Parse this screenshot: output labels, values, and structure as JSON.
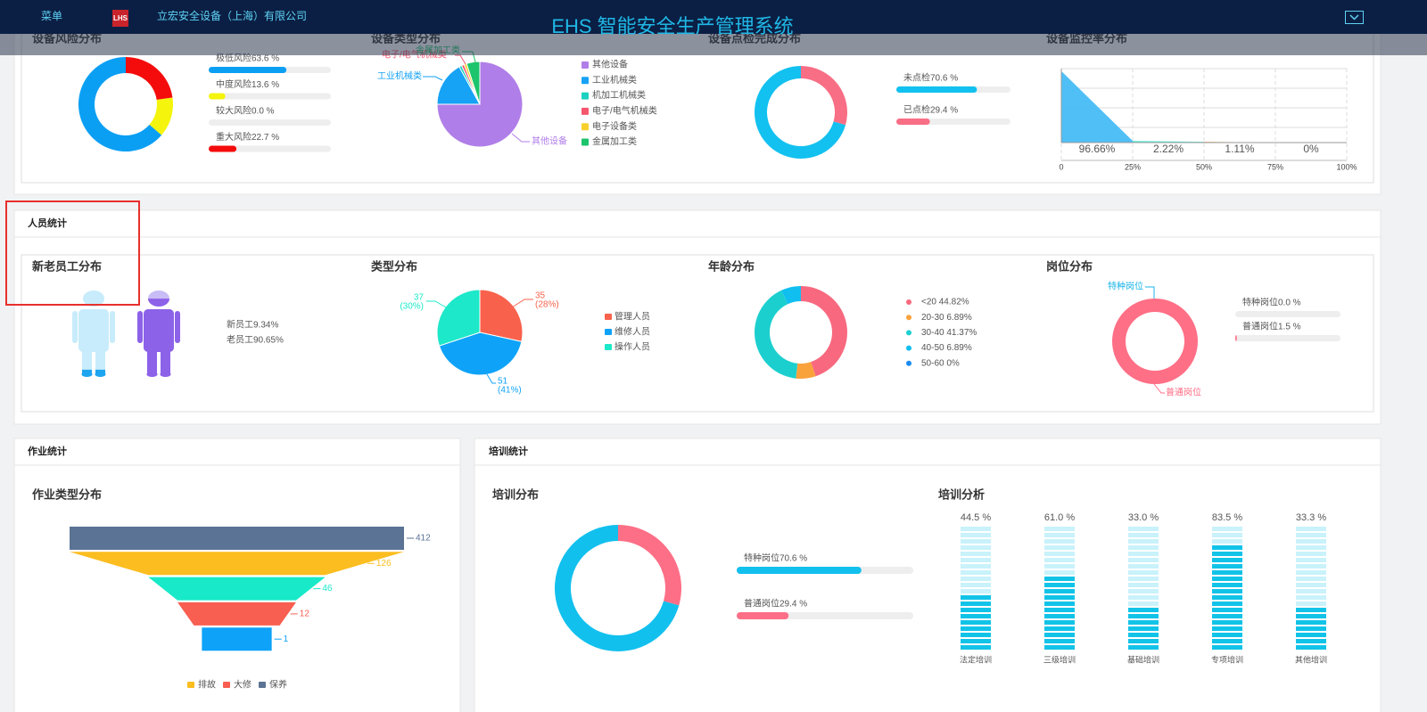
{
  "header": {
    "menu": "菜单",
    "logo": "LHS",
    "company": "立宏安全设备（上海）有限公司",
    "title": "EHS 智能安全生产管理系统"
  },
  "equipment": {
    "risk": {
      "title": "设备风险分布",
      "items": [
        {
          "label": "极低风险63.6 %",
          "value": 63.6,
          "color": "#0b9ff4"
        },
        {
          "label": "中度风险13.6 %",
          "value": 13.6,
          "color": "#f4f40c"
        },
        {
          "label": "较大风险0.0 %",
          "value": 0,
          "color": "#ff9f3a"
        },
        {
          "label": "重大风险22.7 %",
          "value": 22.7,
          "color": "#f40c0c"
        }
      ]
    },
    "type": {
      "title": "设备类型分布",
      "items": [
        {
          "name": "其他设备",
          "value": 75,
          "color": "#b07ee8"
        },
        {
          "name": "工业机械类",
          "value": 17,
          "color": "#16a2f5"
        },
        {
          "name": "机加工机械类",
          "value": 1,
          "color": "#1cd1c0"
        },
        {
          "name": "电子/电气机械类",
          "value": 1,
          "color": "#f5566d"
        },
        {
          "name": "电子设备类",
          "value": 1,
          "color": "#f7d02d"
        },
        {
          "name": "金属加工类",
          "value": 5,
          "color": "#1cc46b"
        }
      ]
    },
    "inspection": {
      "title": "设备点检完成分布",
      "items": [
        {
          "label": "未点检70.6 %",
          "value": 70.6,
          "color": "#12c1f0"
        },
        {
          "label": "已点检29.4 %",
          "value": 29.4,
          "color": "#f86e85"
        }
      ]
    },
    "monitoring": {
      "title": "设备监控率分布",
      "values": [
        96.66,
        2.22,
        1.11,
        0
      ],
      "value_labels": [
        "96.66%",
        "2.22%",
        "1.11%",
        "0%"
      ],
      "colors": [
        "#3db8f5",
        "#4ee8d3",
        "#f5a33a",
        "#f58aa0"
      ],
      "xlim": [
        0,
        100
      ],
      "xticks": [
        0,
        {
          "value": 25,
          "label": "25%"
        },
        {
          "value": 50,
          "label": "50%"
        },
        {
          "value": 75,
          "label": "75%"
        },
        {
          "value": 100,
          "label": "100%"
        }
      ],
      "ylim": [
        0,
        100
      ]
    }
  },
  "personnel": {
    "title": "人员统计",
    "staff": {
      "title": "新老员工分布",
      "items": [
        {
          "label": "新员工9.34%",
          "value": 9.34,
          "color": "#1ea5ef"
        },
        {
          "label": "老员工90.65%",
          "value": 90.65,
          "color": "#8c62e8"
        }
      ]
    },
    "type": {
      "title": "类型分布",
      "items": [
        {
          "name": "管理人员",
          "value": 35,
          "percent": "(28%)",
          "color": "#f8624c"
        },
        {
          "name": "维修人员",
          "value": 51,
          "percent": "(41%)",
          "color": "#0ea3f8"
        },
        {
          "name": "操作人员",
          "value": 37,
          "percent": "(30%)",
          "color": "#1de8c9"
        }
      ]
    },
    "age": {
      "title": "年龄分布",
      "items": [
        {
          "label": "<20 44.82%",
          "value": 44.82,
          "color": "#f8697f"
        },
        {
          "label": "20-30 6.89%",
          "value": 6.89,
          "color": "#f9a23c"
        },
        {
          "label": "30-40 41.37%",
          "value": 41.37,
          "color": "#1ccfcf"
        },
        {
          "label": "40-50 6.89%",
          "value": 6.89,
          "color": "#10bff0"
        },
        {
          "label": "50-60 0%",
          "value": 0,
          "color": "#1a8cf0"
        }
      ]
    },
    "post": {
      "title": "岗位分布",
      "items": [
        {
          "name": "特种岗位",
          "label": "特种岗位0.0 %",
          "value": 0,
          "color": "#19b5e8"
        },
        {
          "name": "普通岗位",
          "label": "普通岗位1.5 %",
          "value": 1.5,
          "color": "#ff6f86"
        }
      ]
    }
  },
  "work": {
    "title": "作业统计",
    "funnel": {
      "title": "作业类型分布",
      "values": [
        412,
        126,
        46,
        12,
        1
      ],
      "colors": [
        "#5b7394",
        "#fbbd1f",
        "#18e9c8",
        "#f85f50",
        "#0ea2f9"
      ],
      "legend": [
        {
          "name": "排故",
          "color": "#fbbd1f"
        },
        {
          "name": "大修",
          "color": "#f85f50"
        },
        {
          "name": "保养",
          "color": "#5b7394"
        }
      ]
    }
  },
  "training": {
    "title": "培训统计",
    "distribution": {
      "title": "培训分布",
      "items": [
        {
          "label": "特种岗位70.6 %",
          "value": 70.6,
          "color": "#12c0ee"
        },
        {
          "label": "普通岗位29.4 %",
          "value": 29.4,
          "color": "#fd6f87"
        }
      ]
    },
    "analysis": {
      "title": "培训分析",
      "categories": [
        "法定培训",
        "三级培训",
        "基础培训",
        "专项培训",
        "其他培训"
      ],
      "values": [
        44.5,
        61,
        33,
        83.5,
        33.3
      ],
      "value_labels": [
        "44.5 %",
        "61.0 %",
        "33.0 %",
        "83.5 %",
        "33.3 %"
      ],
      "ylim": [
        0,
        100
      ],
      "color": "#12c3e8",
      "track_color": "#c9f2fb"
    }
  }
}
